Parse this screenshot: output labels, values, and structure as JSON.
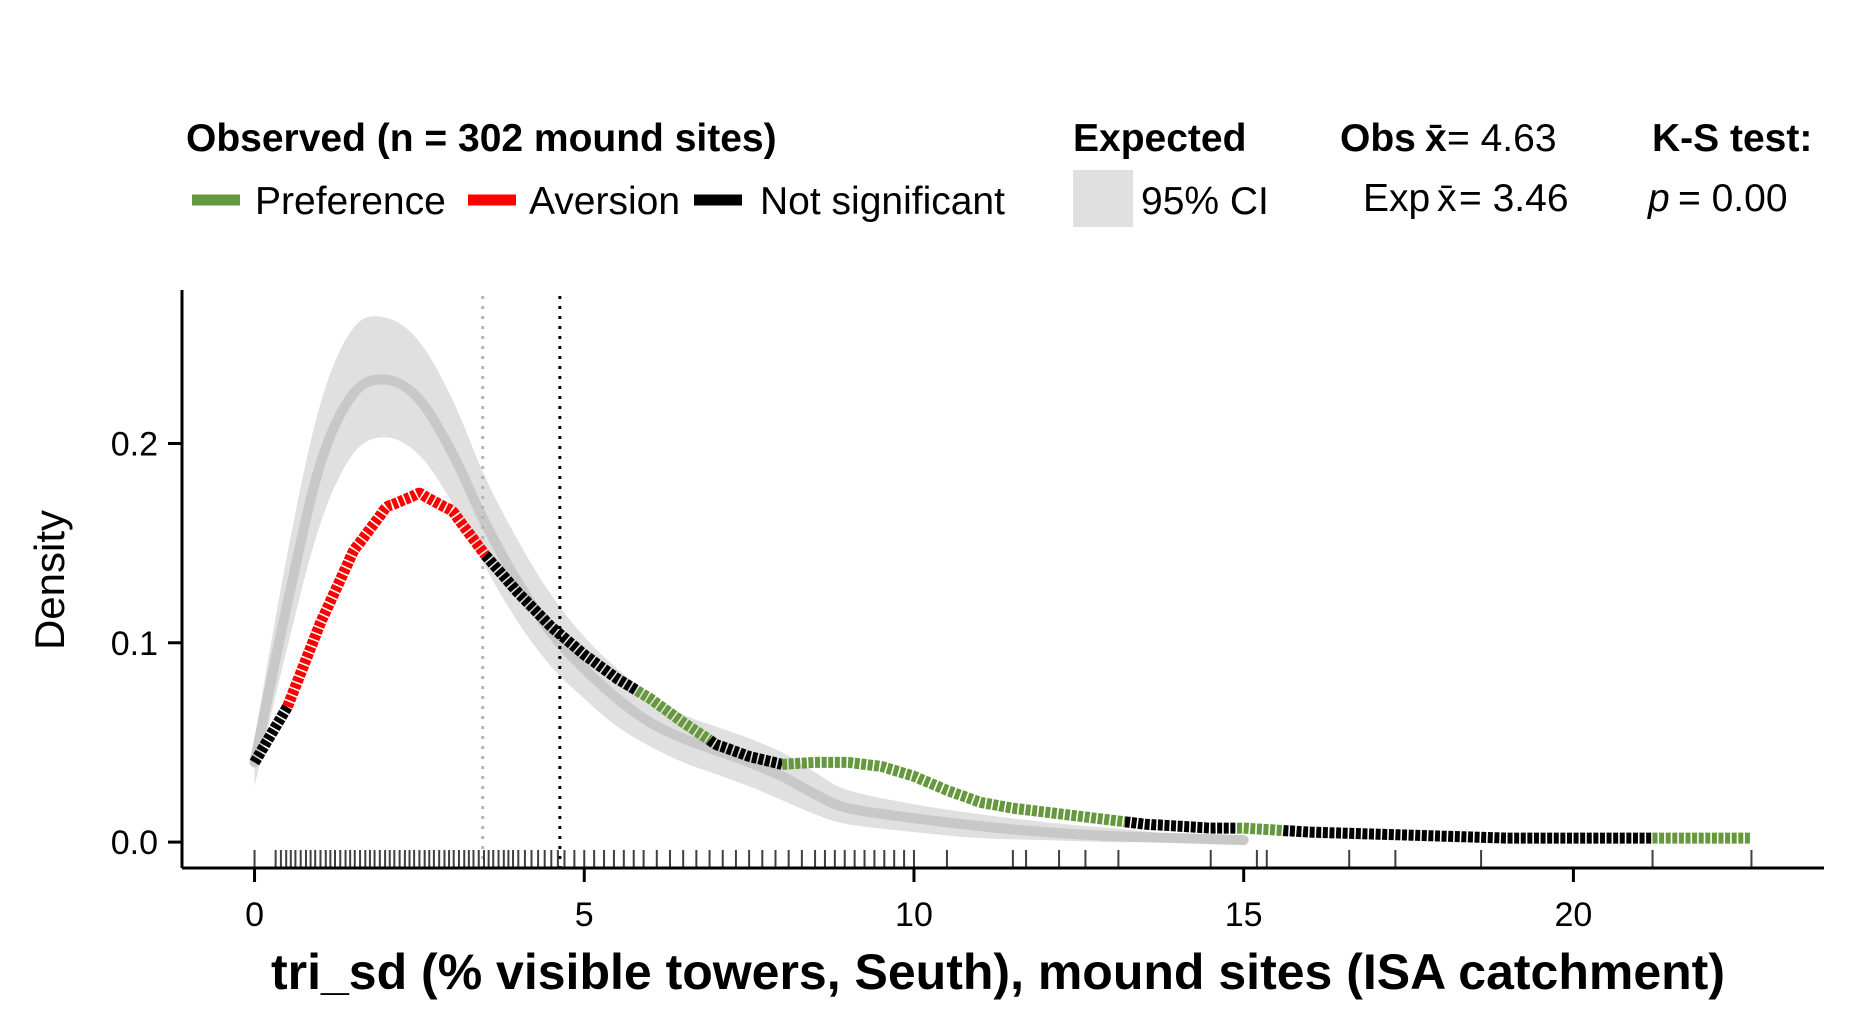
{
  "chart_data": {
    "type": "line",
    "xlabel": "tri_sd (% visible towers, Seuth), mound sites (ISA catchment)",
    "ylabel": "Density",
    "xlim": [
      -1.1,
      23.8
    ],
    "ylim": [
      -0.013,
      0.277
    ],
    "x_ticks": [
      0,
      5,
      10,
      15,
      20
    ],
    "x_tick_labels": [
      "0",
      "5",
      "10",
      "15",
      "20"
    ],
    "y_ticks": [
      0.0,
      0.1,
      0.2
    ],
    "y_tick_labels": [
      "0.0",
      "0.1",
      "0.2"
    ],
    "grid": false,
    "legend_position": "top",
    "legend": {
      "observed_title": "Observed (n = 302 mound sites)",
      "preference_label": "Preference",
      "aversion_label": "Aversion",
      "not_significant_label": "Not significant",
      "expected_title": "Expected",
      "ci_label": "95% CI",
      "obs_mean_prefix": "Obs",
      "obs_mean_symbol": "x̄",
      "obs_mean_value": "= 4.63",
      "exp_mean_prefix": "Exp",
      "exp_mean_symbol": "x̄",
      "exp_mean_value": "= 3.46",
      "ks_title": "K-S test:",
      "p_symbol": "p",
      "p_value": "= 0.00"
    },
    "colors": {
      "preference": "#66993f",
      "aversion": "#ff0000",
      "not_significant": "#000000",
      "expected_line": "#c8c8c8",
      "ci_band": "#e0e0e0",
      "expected_mean_line": "#b4b4b4",
      "observed_mean_line": "#000000",
      "rug": "#404040"
    },
    "observed_mean": 4.63,
    "expected_mean": 3.46,
    "observed_density": {
      "x": [
        0,
        0.5,
        1.0,
        1.5,
        2.0,
        2.5,
        3.0,
        3.5,
        4.0,
        4.5,
        5.0,
        5.5,
        6.0,
        6.5,
        7.0,
        7.5,
        8.0,
        8.5,
        9.0,
        9.5,
        10.0,
        10.5,
        11.0,
        11.5,
        12.0,
        12.5,
        13.0,
        13.5,
        14.0,
        14.5,
        15.0,
        15.5,
        16.0,
        17.0,
        18.0,
        19.0,
        20.0,
        21.0,
        22.0,
        22.7
      ],
      "y": [
        0.04,
        0.068,
        0.11,
        0.146,
        0.168,
        0.175,
        0.166,
        0.144,
        0.125,
        0.108,
        0.094,
        0.082,
        0.072,
        0.06,
        0.049,
        0.043,
        0.039,
        0.04,
        0.04,
        0.038,
        0.033,
        0.026,
        0.02,
        0.017,
        0.015,
        0.013,
        0.011,
        0.009,
        0.008,
        0.007,
        0.007,
        0.006,
        0.005,
        0.004,
        0.003,
        0.002,
        0.002,
        0.002,
        0.002,
        0.002
      ]
    },
    "significance_segments": [
      {
        "from": 0.0,
        "to": 0.5,
        "class": "not_significant"
      },
      {
        "from": 0.5,
        "to": 3.5,
        "class": "aversion"
      },
      {
        "from": 3.5,
        "to": 5.8,
        "class": "not_significant"
      },
      {
        "from": 5.8,
        "to": 6.9,
        "class": "preference"
      },
      {
        "from": 6.9,
        "to": 8.0,
        "class": "not_significant"
      },
      {
        "from": 8.0,
        "to": 13.2,
        "class": "preference"
      },
      {
        "from": 13.2,
        "to": 14.9,
        "class": "not_significant"
      },
      {
        "from": 14.9,
        "to": 15.6,
        "class": "preference"
      },
      {
        "from": 15.6,
        "to": 21.2,
        "class": "not_significant"
      },
      {
        "from": 21.2,
        "to": 22.7,
        "class": "preference"
      }
    ],
    "expected_density": {
      "x": [
        0,
        0.5,
        1.0,
        1.5,
        2.0,
        2.5,
        3.0,
        3.5,
        4.0,
        4.5,
        5.0,
        5.5,
        6.0,
        6.5,
        7.0,
        7.5,
        8.0,
        8.5,
        9.0,
        10.0,
        11.0,
        12.0,
        13.0,
        14.0,
        15.0
      ],
      "y": [
        0.04,
        0.12,
        0.19,
        0.225,
        0.232,
        0.222,
        0.195,
        0.16,
        0.13,
        0.105,
        0.087,
        0.072,
        0.06,
        0.052,
        0.046,
        0.04,
        0.033,
        0.024,
        0.017,
        0.012,
        0.008,
        0.005,
        0.003,
        0.002,
        0.001
      ],
      "ci_lower": [
        0.028,
        0.098,
        0.16,
        0.195,
        0.203,
        0.194,
        0.17,
        0.138,
        0.11,
        0.088,
        0.072,
        0.058,
        0.048,
        0.04,
        0.034,
        0.028,
        0.021,
        0.014,
        0.009,
        0.005,
        0.002,
        0.001,
        0.0,
        0.0,
        0.0
      ],
      "ci_upper": [
        0.052,
        0.145,
        0.22,
        0.258,
        0.263,
        0.251,
        0.222,
        0.183,
        0.151,
        0.124,
        0.103,
        0.087,
        0.074,
        0.064,
        0.058,
        0.052,
        0.045,
        0.035,
        0.026,
        0.019,
        0.014,
        0.01,
        0.007,
        0.004,
        0.003
      ]
    },
    "rug_x": [
      0,
      0.32,
      0.4,
      0.48,
      0.55,
      0.62,
      0.7,
      0.78,
      0.85,
      0.92,
      1.0,
      1.08,
      1.15,
      1.22,
      1.3,
      1.38,
      1.45,
      1.52,
      1.6,
      1.68,
      1.75,
      1.82,
      1.9,
      1.98,
      2.05,
      2.12,
      2.2,
      2.28,
      2.35,
      2.42,
      2.5,
      2.58,
      2.65,
      2.72,
      2.8,
      2.88,
      2.95,
      3.02,
      3.1,
      3.18,
      3.25,
      3.32,
      3.4,
      3.48,
      3.55,
      3.62,
      3.7,
      3.78,
      3.85,
      3.92,
      4.0,
      4.1,
      4.2,
      4.3,
      4.4,
      4.5,
      4.6,
      4.7,
      4.85,
      5.0,
      5.15,
      5.3,
      5.45,
      5.6,
      5.75,
      5.9,
      6.1,
      6.3,
      6.5,
      6.7,
      6.9,
      7.1,
      7.3,
      7.5,
      7.7,
      7.9,
      8.1,
      8.3,
      8.5,
      8.65,
      8.8,
      8.95,
      9.1,
      9.25,
      9.4,
      9.55,
      9.7,
      9.85,
      10.0,
      10.5,
      11.5,
      11.7,
      12.2,
      12.6,
      13.1,
      14.5,
      15.2,
      15.35,
      16.6,
      17.3,
      18.6,
      21.2,
      22.7
    ]
  }
}
